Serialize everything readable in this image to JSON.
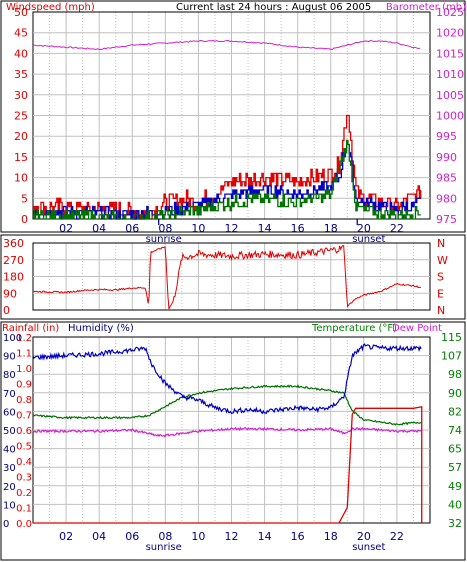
{
  "header": {
    "left_label": "Windspeed (mph)",
    "title": "Current last 24 hours : August 06 2005",
    "right_label": "Barometer (mb)"
  },
  "colors": {
    "red": "#e00000",
    "blue": "#0000c0",
    "green": "#007000",
    "magenta": "#d020d0",
    "grid": "#c0c0c0",
    "axis_blue": "#000080",
    "axis_green": "#008000"
  },
  "x_axis": {
    "hour_labels": [
      "02",
      "04",
      "06",
      "08",
      "10",
      "12",
      "14",
      "16",
      "18",
      "20",
      "22"
    ],
    "sunrise_label": "sunrise",
    "sunset_label": "sunset"
  },
  "chart_data": [
    {
      "type": "line",
      "name": "wind-barometer",
      "xlim": [
        0,
        24
      ],
      "ylim_left": [
        0,
        50
      ],
      "ylim_right": [
        975,
        1025
      ],
      "left_ticks": [
        0,
        5,
        10,
        15,
        20,
        25,
        30,
        35,
        40,
        45,
        50
      ],
      "right_ticks": [
        975,
        980,
        985,
        990,
        995,
        1000,
        1005,
        1010,
        1015,
        1020,
        1025
      ],
      "barometer_mb": [
        [
          0,
          1017
        ],
        [
          2,
          1016.5
        ],
        [
          4,
          1016
        ],
        [
          6,
          1017
        ],
        [
          8,
          1017.5
        ],
        [
          10,
          1018
        ],
        [
          12,
          1018
        ],
        [
          14,
          1017.5
        ],
        [
          16,
          1016.5
        ],
        [
          18,
          1016
        ],
        [
          19,
          1017
        ],
        [
          20,
          1018
        ],
        [
          21,
          1018
        ],
        [
          22,
          1017.5
        ],
        [
          23.5,
          1016
        ]
      ],
      "gust_mph_profile": [
        [
          0,
          3
        ],
        [
          6,
          2
        ],
        [
          7,
          1
        ],
        [
          8,
          4
        ],
        [
          9,
          5
        ],
        [
          10,
          4
        ],
        [
          11,
          6
        ],
        [
          12,
          9
        ],
        [
          14,
          10
        ],
        [
          16,
          9
        ],
        [
          17,
          10
        ],
        [
          18,
          11
        ],
        [
          18.5,
          13
        ],
        [
          19,
          27
        ],
        [
          19.5,
          7
        ],
        [
          20,
          5
        ],
        [
          21,
          4
        ],
        [
          22,
          3
        ],
        [
          23.5,
          7
        ]
      ],
      "avg_mph_profile": [
        [
          0,
          2
        ],
        [
          6,
          1
        ],
        [
          8,
          2
        ],
        [
          10,
          3
        ],
        [
          12,
          6
        ],
        [
          14,
          7
        ],
        [
          16,
          6
        ],
        [
          18,
          8
        ],
        [
          18.5,
          10
        ],
        [
          19,
          20
        ],
        [
          19.5,
          5
        ],
        [
          20,
          4
        ],
        [
          22,
          2
        ],
        [
          23.5,
          4
        ]
      ],
      "sustained_mph_profile": [
        [
          0,
          1
        ],
        [
          6,
          0
        ],
        [
          8,
          1
        ],
        [
          10,
          2
        ],
        [
          12,
          4
        ],
        [
          14,
          5
        ],
        [
          16,
          4
        ],
        [
          18,
          6
        ],
        [
          19,
          19
        ],
        [
          19.5,
          3
        ],
        [
          20,
          2
        ],
        [
          22,
          1
        ],
        [
          23.5,
          2
        ]
      ]
    },
    {
      "type": "line",
      "name": "wind-direction",
      "xlim": [
        0,
        24
      ],
      "ylim": [
        0,
        360
      ],
      "left_ticks": [
        0,
        90,
        180,
        270,
        360
      ],
      "right_labels": [
        "N",
        "W",
        "S",
        "E",
        "N"
      ],
      "direction_deg": [
        [
          0,
          100
        ],
        [
          2,
          95
        ],
        [
          3,
          105
        ],
        [
          4,
          110
        ],
        [
          5,
          108
        ],
        [
          6,
          118
        ],
        [
          6.8,
          120
        ],
        [
          7,
          15
        ],
        [
          7.1,
          310
        ],
        [
          8,
          340
        ],
        [
          8.2,
          5
        ],
        [
          8.5,
          50
        ],
        [
          9,
          280
        ],
        [
          10,
          300
        ],
        [
          12,
          290
        ],
        [
          14,
          300
        ],
        [
          16,
          295
        ],
        [
          18,
          320
        ],
        [
          18.8,
          335
        ],
        [
          19,
          20
        ],
        [
          19.5,
          60
        ],
        [
          20,
          80
        ],
        [
          21,
          100
        ],
        [
          22,
          140
        ],
        [
          23,
          130
        ],
        [
          23.5,
          120
        ]
      ]
    },
    {
      "type": "line",
      "name": "rain-humidity-temperature",
      "xlim": [
        0,
        24
      ],
      "rainfall_ticks": [
        "0.0",
        "0.1",
        "0.2",
        "0.3",
        "0.4",
        "0.5",
        "0.6",
        "0.7",
        "0.8",
        "0.9",
        "1.0",
        "1.1",
        "1.2"
      ],
      "humidity_ticks": [
        0,
        10,
        20,
        30,
        40,
        50,
        60,
        70,
        80,
        90,
        100
      ],
      "temperature_ticks": [
        32,
        40,
        49,
        57,
        65,
        74,
        82,
        90,
        98,
        107,
        115
      ],
      "labels": {
        "rainfall": "Rainfall (in)",
        "humidity": "Humidity (%)",
        "temperature": "Temperature (°F)",
        "dew_point": "Dew Point"
      },
      "humidity_pct": [
        [
          0,
          89
        ],
        [
          2,
          90
        ],
        [
          4,
          91
        ],
        [
          6,
          93
        ],
        [
          6.8,
          94
        ],
        [
          7.2,
          85
        ],
        [
          8,
          75
        ],
        [
          9,
          68
        ],
        [
          10,
          66
        ],
        [
          11,
          62
        ],
        [
          12,
          60
        ],
        [
          13,
          61
        ],
        [
          14,
          60
        ],
        [
          15,
          61
        ],
        [
          16,
          62
        ],
        [
          17,
          61
        ],
        [
          18,
          62
        ],
        [
          18.8,
          68
        ],
        [
          19.3,
          90
        ],
        [
          20,
          95
        ],
        [
          21,
          94
        ],
        [
          22,
          94
        ],
        [
          23.5,
          94
        ]
      ],
      "temperature_f": [
        [
          0,
          80
        ],
        [
          2,
          79
        ],
        [
          4,
          79
        ],
        [
          6,
          79
        ],
        [
          7,
          80
        ],
        [
          8,
          84
        ],
        [
          9,
          88
        ],
        [
          10,
          90
        ],
        [
          12,
          92
        ],
        [
          14,
          93
        ],
        [
          16,
          93
        ],
        [
          18,
          91
        ],
        [
          18.8,
          90
        ],
        [
          19.3,
          82
        ],
        [
          20,
          78
        ],
        [
          22,
          76
        ],
        [
          23.5,
          77
        ]
      ],
      "dew_point_f": [
        [
          0,
          73
        ],
        [
          2,
          73
        ],
        [
          4,
          73
        ],
        [
          6,
          73.5
        ],
        [
          7.5,
          71
        ],
        [
          8,
          71
        ],
        [
          10,
          73
        ],
        [
          12,
          74
        ],
        [
          14,
          74
        ],
        [
          16,
          73.5
        ],
        [
          18,
          74
        ],
        [
          18.8,
          72
        ],
        [
          19.3,
          74
        ],
        [
          20,
          74
        ],
        [
          22,
          73
        ],
        [
          23.5,
          73
        ]
      ],
      "rainfall_in": [
        [
          0,
          0
        ],
        [
          18.5,
          0
        ],
        [
          19,
          0.1
        ],
        [
          19.3,
          0.7
        ],
        [
          19.5,
          0.74
        ],
        [
          21,
          0.74
        ],
        [
          23,
          0.74
        ],
        [
          23.5,
          0.75
        ],
        [
          23.5,
          0
        ]
      ]
    }
  ]
}
